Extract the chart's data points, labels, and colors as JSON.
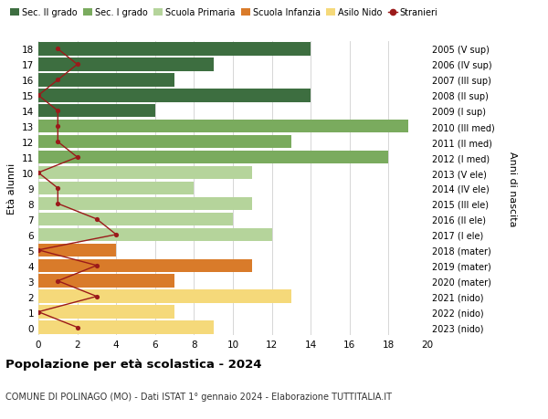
{
  "ages": [
    18,
    17,
    16,
    15,
    14,
    13,
    12,
    11,
    10,
    9,
    8,
    7,
    6,
    5,
    4,
    3,
    2,
    1,
    0
  ],
  "right_labels": [
    "2005 (V sup)",
    "2006 (IV sup)",
    "2007 (III sup)",
    "2008 (II sup)",
    "2009 (I sup)",
    "2010 (III med)",
    "2011 (II med)",
    "2012 (I med)",
    "2013 (V ele)",
    "2014 (IV ele)",
    "2015 (III ele)",
    "2016 (II ele)",
    "2017 (I ele)",
    "2018 (mater)",
    "2019 (mater)",
    "2020 (mater)",
    "2021 (nido)",
    "2022 (nido)",
    "2023 (nido)"
  ],
  "bar_values": [
    14,
    9,
    7,
    14,
    6,
    19,
    13,
    18,
    11,
    8,
    11,
    10,
    12,
    4,
    11,
    7,
    13,
    7,
    9
  ],
  "bar_colors": [
    "#3d6e40",
    "#3d6e40",
    "#3d6e40",
    "#3d6e40",
    "#3d6e40",
    "#7aab5e",
    "#7aab5e",
    "#7aab5e",
    "#b5d49b",
    "#b5d49b",
    "#b5d49b",
    "#b5d49b",
    "#b5d49b",
    "#d97b2a",
    "#d97b2a",
    "#d97b2a",
    "#f5d97a",
    "#f5d97a",
    "#f5d97a"
  ],
  "stranieri_values": [
    1,
    2,
    1,
    0,
    1,
    1,
    1,
    2,
    0,
    1,
    1,
    3,
    4,
    0,
    3,
    1,
    3,
    0,
    2
  ],
  "stranieri_color": "#9b1a1a",
  "legend_labels": [
    "Sec. II grado",
    "Sec. I grado",
    "Scuola Primaria",
    "Scuola Infanzia",
    "Asilo Nido",
    "Stranieri"
  ],
  "legend_colors": [
    "#3d6e40",
    "#7aab5e",
    "#b5d49b",
    "#d97b2a",
    "#f5d97a",
    "#9b1a1a"
  ],
  "ylabel_left": "Età alunni",
  "ylabel_right": "Anni di nascita",
  "title": "Popolazione per età scolastica - 2024",
  "subtitle": "COMUNE DI POLINAGO (MO) - Dati ISTAT 1° gennaio 2024 - Elaborazione TUTTITALIA.IT",
  "xlim": [
    0,
    20
  ],
  "xticks": [
    0,
    2,
    4,
    6,
    8,
    10,
    12,
    14,
    16,
    18,
    20
  ],
  "bg_color": "#ffffff",
  "grid_color": "#d0d0d0"
}
